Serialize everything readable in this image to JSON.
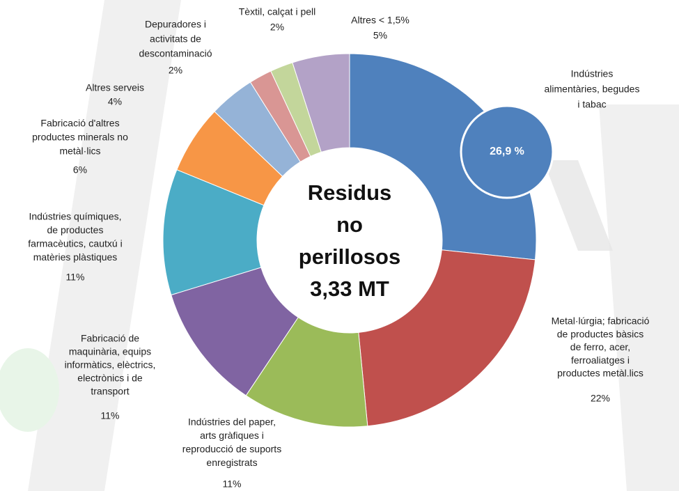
{
  "chart_data": {
    "type": "donut",
    "center_text": [
      "Residus",
      "no",
      "perillosos",
      "3,33 MT"
    ],
    "categories": [
      [
        "Indústries",
        "alimentàries, begudes",
        "i tabac"
      ],
      [
        "Metal·lúrgia; fabricació",
        "de productes bàsics",
        "de ferro, acer,",
        "ferroaliatges i",
        "productes metàl.lics"
      ],
      [
        "Indústries del paper,",
        "arts gràfiques i",
        "reproducció de suports",
        "enregistrats"
      ],
      [
        "Fabricació de",
        "maquinària, equips",
        "informàtics, elèctrics,",
        "electrònics i de",
        "transport"
      ],
      [
        "Indústries químiques,",
        "de productes",
        "farmacèutics, cautxú i",
        "matèries plàstiques"
      ],
      [
        "Fabricació d'altres",
        "productes minerals no",
        "metàl·lics"
      ],
      [
        "Altres serveis"
      ],
      [
        "Depuradores i",
        "activitats de",
        "descontaminació"
      ],
      [
        "Tèxtil, calçat i pell"
      ],
      [
        "Altres < 1,5%"
      ]
    ],
    "values": [
      26.9,
      22,
      11,
      11,
      11,
      6,
      4,
      2,
      2,
      5
    ],
    "value_labels": [
      "26,9 %",
      "22%",
      "11%",
      "11%",
      "11%",
      "6%",
      "4%",
      "2%",
      "2%",
      "5%"
    ],
    "colors": [
      "#4f81bd",
      "#c0504d",
      "#9bbb59",
      "#8064a2",
      "#4bacc6",
      "#f79646",
      "#95b3d7",
      "#d99694",
      "#c3d69b",
      "#b3a2c7"
    ]
  }
}
